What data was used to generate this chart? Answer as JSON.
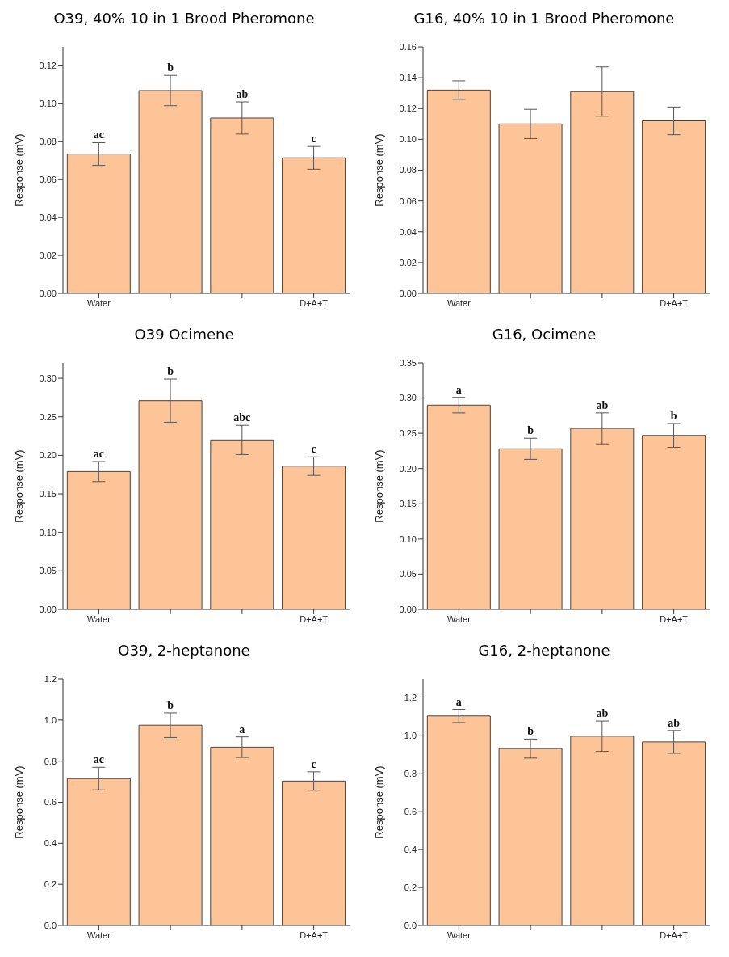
{
  "chart_data": [
    {
      "type": "bar",
      "title": "O39, 40% 10 in 1 Brood Pheromone",
      "ylabel": "Response (mV)",
      "categories": [
        "Water",
        null,
        null,
        "D+A+T"
      ],
      "values": [
        0.0735,
        0.107,
        0.0925,
        0.0715
      ],
      "errors": [
        0.006,
        0.008,
        0.0085,
        0.006
      ],
      "value_labels": [
        "ac",
        "b",
        "ab",
        "c"
      ],
      "color": "#fdc597",
      "ylim": [
        0,
        0.13
      ],
      "yticks": [
        {
          "value": 0,
          "label": "0.00"
        },
        {
          "value": 0.02,
          "label": "0.02"
        },
        {
          "value": 0.04,
          "label": "0.04"
        },
        {
          "value": 0.06,
          "label": "0.06"
        },
        {
          "value": 0.08,
          "label": "0.08"
        },
        {
          "value": 0.1,
          "label": "0.10"
        },
        {
          "value": 0.12,
          "label": "0.12"
        }
      ],
      "grid": false
    },
    {
      "type": "bar",
      "title": "G16, 40% 10 in 1 Brood Pheromone",
      "ylabel": "Response (mV)",
      "categories": [
        "Water",
        null,
        null,
        "D+A+T"
      ],
      "values": [
        0.132,
        0.11,
        0.131,
        0.112
      ],
      "errors": [
        0.006,
        0.0095,
        0.016,
        0.009
      ],
      "color": "#fdc597",
      "ylim": [
        0,
        0.16
      ],
      "yticks": [
        {
          "value": 0,
          "label": "0.00"
        },
        {
          "value": 0.02,
          "label": "0.02"
        },
        {
          "value": 0.04,
          "label": "0.04"
        },
        {
          "value": 0.06,
          "label": "0.06"
        },
        {
          "value": 0.08,
          "label": "0.08"
        },
        {
          "value": 0.1,
          "label": "0.10"
        },
        {
          "value": 0.12,
          "label": "0.12"
        },
        {
          "value": 0.14,
          "label": "0.14"
        },
        {
          "value": 0.16,
          "label": "0.16"
        }
      ],
      "grid": false
    },
    {
      "type": "bar",
      "title": "O39 Ocimene",
      "ylabel": "Response (mV)",
      "categories": [
        "Water",
        null,
        null,
        "D+A+T"
      ],
      "values": [
        0.179,
        0.271,
        0.22,
        0.186
      ],
      "errors": [
        0.013,
        0.028,
        0.019,
        0.012
      ],
      "value_labels": [
        "ac",
        "b",
        "abc",
        "c"
      ],
      "color": "#fdc597",
      "ylim": [
        0,
        0.32
      ],
      "yticks": [
        {
          "value": 0,
          "label": "0.00"
        },
        {
          "value": 0.05,
          "label": "0.05"
        },
        {
          "value": 0.1,
          "label": "0.10"
        },
        {
          "value": 0.15,
          "label": "0.15"
        },
        {
          "value": 0.2,
          "label": "0.20"
        },
        {
          "value": 0.25,
          "label": "0.25"
        },
        {
          "value": 0.3,
          "label": "0.30"
        }
      ],
      "grid": false
    },
    {
      "type": "bar",
      "title": "G16,  Ocimene",
      "ylabel": "Response (mV)",
      "categories": [
        "Water",
        null,
        null,
        "D+A+T"
      ],
      "values": [
        0.29,
        0.228,
        0.257,
        0.247
      ],
      "errors": [
        0.011,
        0.015,
        0.022,
        0.017
      ],
      "value_labels": [
        "a",
        "b",
        "ab",
        "b"
      ],
      "color": "#fdc597",
      "ylim": [
        0,
        0.35
      ],
      "yticks": [
        {
          "value": 0,
          "label": "0.00"
        },
        {
          "value": 0.05,
          "label": "0.05"
        },
        {
          "value": 0.1,
          "label": "0.10"
        },
        {
          "value": 0.15,
          "label": "0.15"
        },
        {
          "value": 0.2,
          "label": "0.20"
        },
        {
          "value": 0.25,
          "label": "0.25"
        },
        {
          "value": 0.3,
          "label": "0.30"
        },
        {
          "value": 0.35,
          "label": "0.35"
        }
      ],
      "grid": false
    },
    {
      "type": "bar",
      "title": "O39,  2-heptanone",
      "ylabel": "Response (mV)",
      "categories": [
        "Water",
        null,
        null,
        "D+A+T"
      ],
      "values": [
        0.715,
        0.975,
        0.868,
        0.703
      ],
      "errors": [
        0.055,
        0.06,
        0.05,
        0.045
      ],
      "value_labels": [
        "ac",
        "b",
        "a",
        "c"
      ],
      "color": "#fdc597",
      "ylim": [
        0,
        1.2
      ],
      "yticks": [
        {
          "value": 0,
          "label": "0.0"
        },
        {
          "value": 0.2,
          "label": "0.2"
        },
        {
          "value": 0.4,
          "label": "0.4"
        },
        {
          "value": 0.6,
          "label": "0.6"
        },
        {
          "value": 0.8,
          "label": "0.8"
        },
        {
          "value": 1,
          "label": "1.0"
        },
        {
          "value": 1.2,
          "label": "1.2"
        }
      ],
      "grid": false
    },
    {
      "type": "bar",
      "title": "G16, 2-heptanone",
      "ylabel": "Response (mV)",
      "categories": [
        "Water",
        null,
        null,
        "D+A+T"
      ],
      "values": [
        1.105,
        0.933,
        0.998,
        0.968
      ],
      "errors": [
        0.035,
        0.05,
        0.08,
        0.06
      ],
      "value_labels": [
        "a",
        "b",
        "ab",
        "ab"
      ],
      "color": "#fdc597",
      "ylim": [
        0,
        1.3
      ],
      "yticks": [
        {
          "value": 0,
          "label": "0.0"
        },
        {
          "value": 0.2,
          "label": "0.2"
        },
        {
          "value": 0.4,
          "label": "0.4"
        },
        {
          "value": 0.6,
          "label": "0.6"
        },
        {
          "value": 0.8,
          "label": "0.8"
        },
        {
          "value": 1,
          "label": "1.0"
        },
        {
          "value": 1.2,
          "label": "1.2"
        }
      ],
      "grid": false
    }
  ]
}
